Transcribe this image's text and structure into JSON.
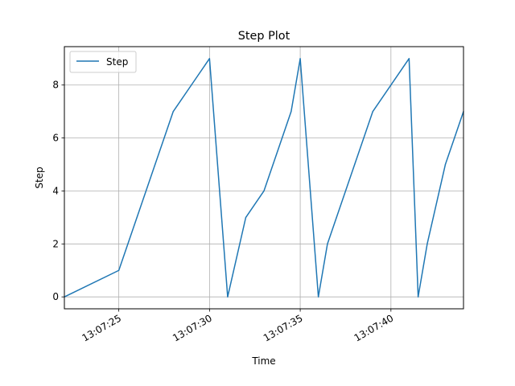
{
  "chart_data": {
    "type": "line",
    "title": "Step Plot",
    "xlabel": "Time",
    "ylabel": "Step",
    "x_time_format": "HH:MM:SS",
    "x": [
      "13:07:22",
      "13:07:25",
      "13:07:26",
      "13:07:27",
      "13:07:27.5",
      "13:07:28",
      "13:07:29",
      "13:07:30",
      "13:07:31",
      "13:07:32",
      "13:07:33",
      "13:07:34",
      "13:07:34.5",
      "13:07:35",
      "13:07:36",
      "13:07:36.5",
      "13:07:37",
      "13:07:38",
      "13:07:38.5",
      "13:07:39",
      "13:07:41",
      "13:07:41.5",
      "13:07:42",
      "13:07:43",
      "13:07:43.5",
      "13:07:44"
    ],
    "series": [
      {
        "name": "Step",
        "color": "#1f77b4",
        "values": [
          0,
          1,
          3,
          5,
          6,
          7,
          8,
          9,
          0,
          3,
          4,
          6,
          7,
          9,
          0,
          2,
          3,
          5,
          6,
          7,
          9,
          0,
          2,
          5,
          6,
          7
        ]
      }
    ],
    "xticks": [
      "13:07:25",
      "13:07:30",
      "13:07:35",
      "13:07:40"
    ],
    "yticks": [
      0,
      2,
      4,
      6,
      8
    ],
    "ylim": [
      -0.45,
      9.45
    ],
    "grid": true,
    "legend": "top-left"
  }
}
